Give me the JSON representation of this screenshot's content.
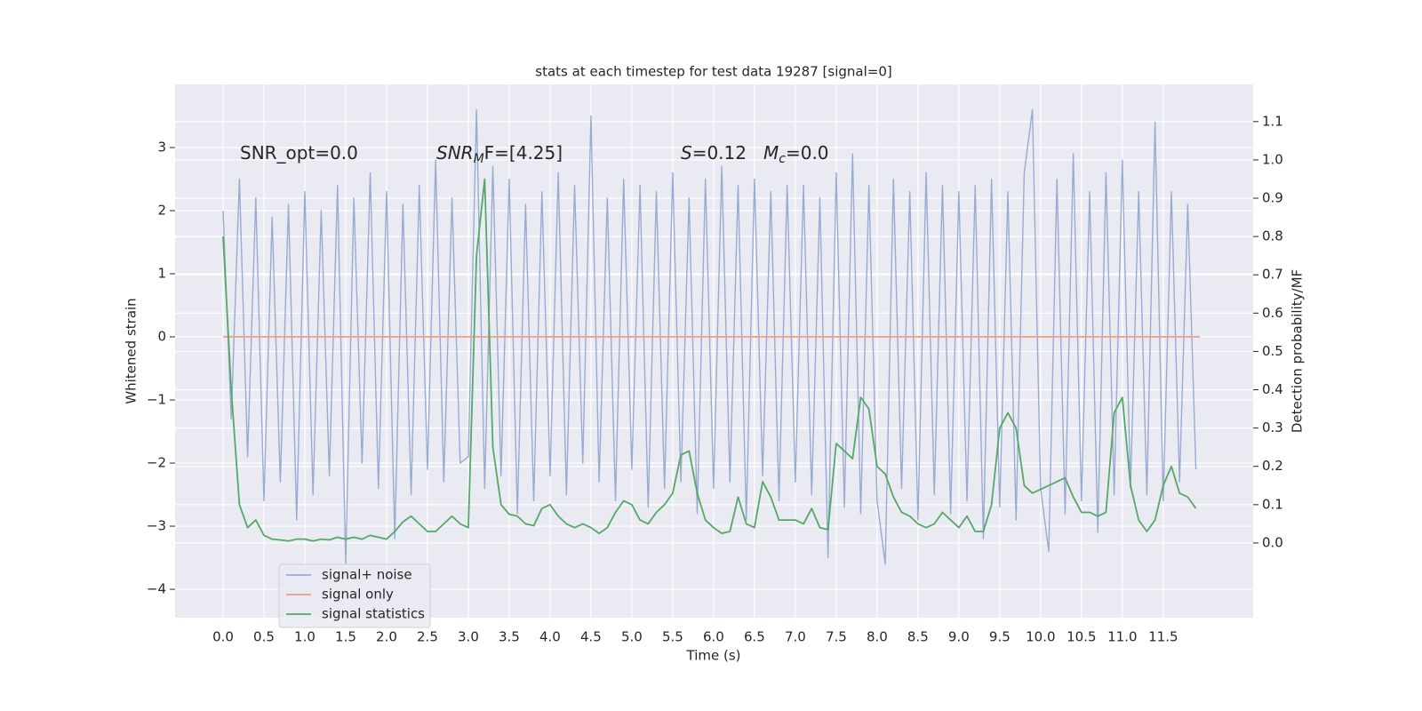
{
  "chart_data": {
    "type": "line",
    "title": "stats at each timestep for test data 19287 [signal=0]",
    "xlabel": "Time (s)",
    "ylabel": "Whitened strain",
    "y2label": "Detection probability/MF",
    "grid": true,
    "legend": "lower left",
    "xlim": [
      -0.587,
      12.6
    ],
    "ylim": [
      -4.45,
      4.0
    ],
    "y2lim": [
      -0.195,
      1.197
    ],
    "xticks": [
      {
        "value": 0,
        "label": "0.0"
      },
      {
        "value": 0.5,
        "label": "0.5"
      },
      {
        "value": 1,
        "label": "1.0"
      },
      {
        "value": 1.5,
        "label": "1.5"
      },
      {
        "value": 2,
        "label": "2.0"
      },
      {
        "value": 2.5,
        "label": "2.5"
      },
      {
        "value": 3,
        "label": "3.0"
      },
      {
        "value": 3.5,
        "label": "3.5"
      },
      {
        "value": 4,
        "label": "4.0"
      },
      {
        "value": 4.5,
        "label": "4.5"
      },
      {
        "value": 5,
        "label": "5.0"
      },
      {
        "value": 5.5,
        "label": "5.5"
      },
      {
        "value": 6,
        "label": "6.0"
      },
      {
        "value": 6.5,
        "label": "6.5"
      },
      {
        "value": 7,
        "label": "7.0"
      },
      {
        "value": 7.5,
        "label": "7.5"
      },
      {
        "value": 8,
        "label": "8.0"
      },
      {
        "value": 8.5,
        "label": "8.5"
      },
      {
        "value": 9,
        "label": "9.0"
      },
      {
        "value": 9.5,
        "label": "9.5"
      },
      {
        "value": 10,
        "label": "10.0"
      },
      {
        "value": 10.5,
        "label": "10.5"
      },
      {
        "value": 11,
        "label": "11.0"
      },
      {
        "value": 11.5,
        "label": "11.5"
      }
    ],
    "yticks": [
      {
        "value": -4,
        "label": "−4"
      },
      {
        "value": -3,
        "label": "−3"
      },
      {
        "value": -2,
        "label": "−2"
      },
      {
        "value": -1,
        "label": "−1"
      },
      0,
      1,
      2,
      3
    ],
    "y2ticks": [
      {
        "value": 0,
        "label": "0.0"
      },
      {
        "value": 0.1,
        "label": "0.1"
      },
      {
        "value": 0.2,
        "label": "0.2"
      },
      {
        "value": 0.3,
        "label": "0.3"
      },
      {
        "value": 0.4,
        "label": "0.4"
      },
      {
        "value": 0.5,
        "label": "0.5"
      },
      {
        "value": 0.6,
        "label": "0.6"
      },
      {
        "value": 0.7,
        "label": "0.7"
      },
      {
        "value": 0.8,
        "label": "0.8"
      },
      {
        "value": 0.9,
        "label": "0.9"
      },
      {
        "value": 1,
        "label": "1.0"
      },
      {
        "value": 1.1,
        "label": "1.1"
      }
    ],
    "annotations": [
      {
        "text": "SNR_opt=0.0"
      },
      {
        "italic": "SNR",
        "sub": "M",
        "text": "F=[4.25]"
      },
      {
        "italic": "S",
        "text": "=0.12"
      },
      {
        "italic": "M",
        "sub": "c",
        "text": "=0.0"
      }
    ],
    "series": [
      {
        "name": "signal+ noise",
        "color": "#9aabd1",
        "x": [
          0,
          0.1,
          0.2,
          0.3,
          0.4,
          0.5,
          0.6,
          0.7,
          0.8,
          0.9,
          1,
          1.1,
          1.2,
          1.3,
          1.4,
          1.5,
          1.6,
          1.7,
          1.8,
          1.9,
          2,
          2.1,
          2.2,
          2.3,
          2.4,
          2.5,
          2.6,
          2.7,
          2.8,
          2.9,
          3,
          3.1,
          3.2,
          3.3,
          3.4,
          3.5,
          3.6,
          3.7,
          3.8,
          3.9,
          4,
          4.1,
          4.2,
          4.3,
          4.4,
          4.5,
          4.6,
          4.7,
          4.8,
          4.9,
          5,
          5.1,
          5.2,
          5.3,
          5.4,
          5.5,
          5.6,
          5.7,
          5.8,
          5.9,
          6,
          6.1,
          6.2,
          6.3,
          6.4,
          6.5,
          6.6,
          6.7,
          6.8,
          6.9,
          7,
          7.1,
          7.2,
          7.3,
          7.4,
          7.5,
          7.6,
          7.7,
          7.8,
          7.9,
          8,
          8.1,
          8.2,
          8.3,
          8.4,
          8.5,
          8.6,
          8.7,
          8.8,
          8.9,
          9,
          9.1,
          9.2,
          9.3,
          9.4,
          9.5,
          9.6,
          9.7,
          9.8,
          9.9,
          10,
          10.1,
          10.2,
          10.3,
          10.4,
          10.5,
          10.6,
          10.7,
          10.8,
          10.9,
          11,
          11.1,
          11.2,
          11.3,
          11.4,
          11.5,
          11.6,
          11.7,
          11.8,
          11.9
        ],
        "values": [
          2.0,
          -1.3,
          2.5,
          -1.9,
          2.2,
          -2.6,
          1.9,
          -2.3,
          2.1,
          -2.9,
          2.3,
          -2.5,
          2.0,
          -2.2,
          2.4,
          -3.6,
          2.2,
          -2.0,
          2.6,
          -2.4,
          2.3,
          -3.2,
          2.1,
          -2.5,
          2.4,
          -2.1,
          2.8,
          -2.3,
          2.2,
          -2.0,
          -1.9,
          3.6,
          -2.4,
          2.7,
          -2.2,
          2.5,
          -2.8,
          2.1,
          -2.6,
          2.3,
          -2.2,
          2.6,
          -2.5,
          2.4,
          -2.0,
          3.5,
          -2.3,
          2.2,
          -2.6,
          2.5,
          -2.1,
          2.4,
          -2.7,
          2.3,
          -2.4,
          2.6,
          -2.3,
          2.2,
          -2.8,
          2.5,
          -2.4,
          2.7,
          -2.3,
          2.4,
          -2.9,
          2.5,
          -2.2,
          2.3,
          -2.6,
          2.4,
          -2.3,
          2.4,
          -2.5,
          2.2,
          -3.5,
          2.6,
          -2.7,
          2.9,
          -2.8,
          2.4,
          -2.6,
          -3.6,
          2.5,
          -2.4,
          2.3,
          -2.9,
          2.6,
          -2.5,
          2.4,
          -2.8,
          2.3,
          -2.6,
          2.4,
          -3.2,
          2.5,
          -2.7,
          2.3,
          -2.9,
          2.6,
          3.6,
          -2.4,
          -3.4,
          2.5,
          -2.8,
          2.9,
          -2.6,
          2.3,
          -3.1,
          2.6,
          -2.5,
          2.8,
          -2.4,
          2.3,
          -2.5,
          3.4,
          -2.6,
          2.3,
          -2.3,
          2.1,
          -2.1
        ]
      },
      {
        "name": "signal only",
        "color": "#e6a285",
        "x": [
          0,
          11.95
        ],
        "values": [
          0,
          0
        ]
      },
      {
        "name": "signal statistics",
        "color": "#55a868",
        "axis": "y2",
        "x": [
          0,
          0.1,
          0.2,
          0.3,
          0.4,
          0.5,
          0.6,
          0.7,
          0.8,
          0.9,
          1,
          1.1,
          1.2,
          1.3,
          1.4,
          1.5,
          1.6,
          1.7,
          1.8,
          1.9,
          2,
          2.1,
          2.2,
          2.3,
          2.4,
          2.5,
          2.6,
          2.7,
          2.8,
          2.9,
          3,
          3.1,
          3.2,
          3.3,
          3.4,
          3.5,
          3.6,
          3.7,
          3.8,
          3.9,
          4,
          4.1,
          4.2,
          4.3,
          4.4,
          4.5,
          4.6,
          4.7,
          4.8,
          4.9,
          5,
          5.1,
          5.2,
          5.3,
          5.4,
          5.5,
          5.6,
          5.7,
          5.8,
          5.9,
          6,
          6.1,
          6.2,
          6.3,
          6.4,
          6.5,
          6.6,
          6.7,
          6.8,
          6.9,
          7,
          7.1,
          7.2,
          7.3,
          7.4,
          7.5,
          7.6,
          7.7,
          7.8,
          7.9,
          8,
          8.1,
          8.2,
          8.3,
          8.4,
          8.5,
          8.6,
          8.7,
          8.8,
          8.9,
          9,
          9.1,
          9.2,
          9.3,
          9.4,
          9.5,
          9.6,
          9.7,
          9.8,
          9.9,
          10,
          10.1,
          10.2,
          10.3,
          10.4,
          10.5,
          10.6,
          10.7,
          10.8,
          10.9,
          11,
          11.1,
          11.2,
          11.3,
          11.4,
          11.5,
          11.6,
          11.7,
          11.8,
          11.9
        ],
        "values": [
          0.8,
          0.4,
          0.1,
          0.04,
          0.06,
          0.02,
          0.01,
          0.008,
          0.005,
          0.01,
          0.01,
          0.005,
          0.01,
          0.008,
          0.015,
          0.01,
          0.015,
          0.01,
          0.02,
          0.015,
          0.01,
          0.03,
          0.055,
          0.07,
          0.05,
          0.03,
          0.03,
          0.05,
          0.07,
          0.05,
          0.04,
          0.75,
          0.95,
          0.25,
          0.1,
          0.075,
          0.07,
          0.05,
          0.045,
          0.09,
          0.1,
          0.07,
          0.05,
          0.04,
          0.05,
          0.04,
          0.025,
          0.04,
          0.08,
          0.11,
          0.1,
          0.06,
          0.05,
          0.08,
          0.1,
          0.13,
          0.23,
          0.24,
          0.13,
          0.06,
          0.04,
          0.025,
          0.03,
          0.12,
          0.05,
          0.04,
          0.16,
          0.12,
          0.06,
          0.06,
          0.06,
          0.05,
          0.09,
          0.04,
          0.035,
          0.26,
          0.24,
          0.22,
          0.38,
          0.35,
          0.2,
          0.18,
          0.12,
          0.08,
          0.07,
          0.05,
          0.04,
          0.05,
          0.08,
          0.06,
          0.04,
          0.07,
          0.03,
          0.03,
          0.1,
          0.3,
          0.34,
          0.3,
          0.15,
          0.13,
          0.14,
          0.15,
          0.16,
          0.17,
          0.12,
          0.08,
          0.08,
          0.07,
          0.08,
          0.34,
          0.38,
          0.15,
          0.06,
          0.03,
          0.06,
          0.15,
          0.2,
          0.13,
          0.12,
          0.09
        ]
      }
    ]
  }
}
